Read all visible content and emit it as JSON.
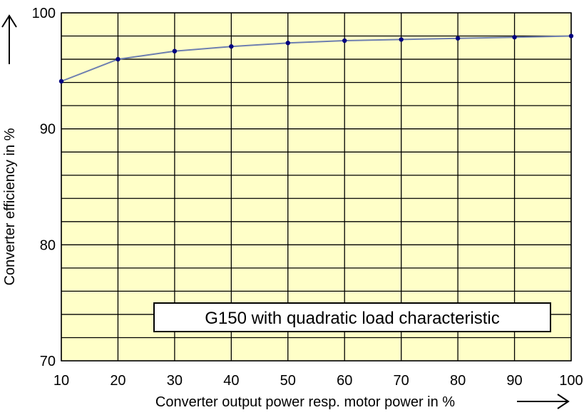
{
  "chart_data": {
    "type": "line",
    "title": "",
    "xlabel": "Converter output power resp. motor power in %",
    "ylabel": "Converter efficiency in %",
    "xlim": [
      10,
      100
    ],
    "ylim": [
      70,
      100
    ],
    "x_ticks": [
      "10",
      "20",
      "30",
      "40",
      "50",
      "60",
      "70",
      "80",
      "90",
      "100"
    ],
    "y_ticks": [
      "70",
      "80",
      "90",
      "100"
    ],
    "grid": true,
    "x_grid_step": 10,
    "y_grid_step": 2,
    "annotation": "G150 with quadratic load characteristic",
    "series": [
      {
        "x": [
          10,
          20,
          30,
          40,
          50,
          60,
          70,
          80,
          90,
          100
        ],
        "values": [
          94.1,
          96.0,
          96.7,
          97.1,
          97.4,
          97.6,
          97.7,
          97.8,
          97.9,
          98.0
        ]
      }
    ]
  },
  "colors": {
    "plot_background": "#FFFFC8",
    "grid": "#000000",
    "series_line": "#6E7FB0",
    "marker": "#000080"
  }
}
